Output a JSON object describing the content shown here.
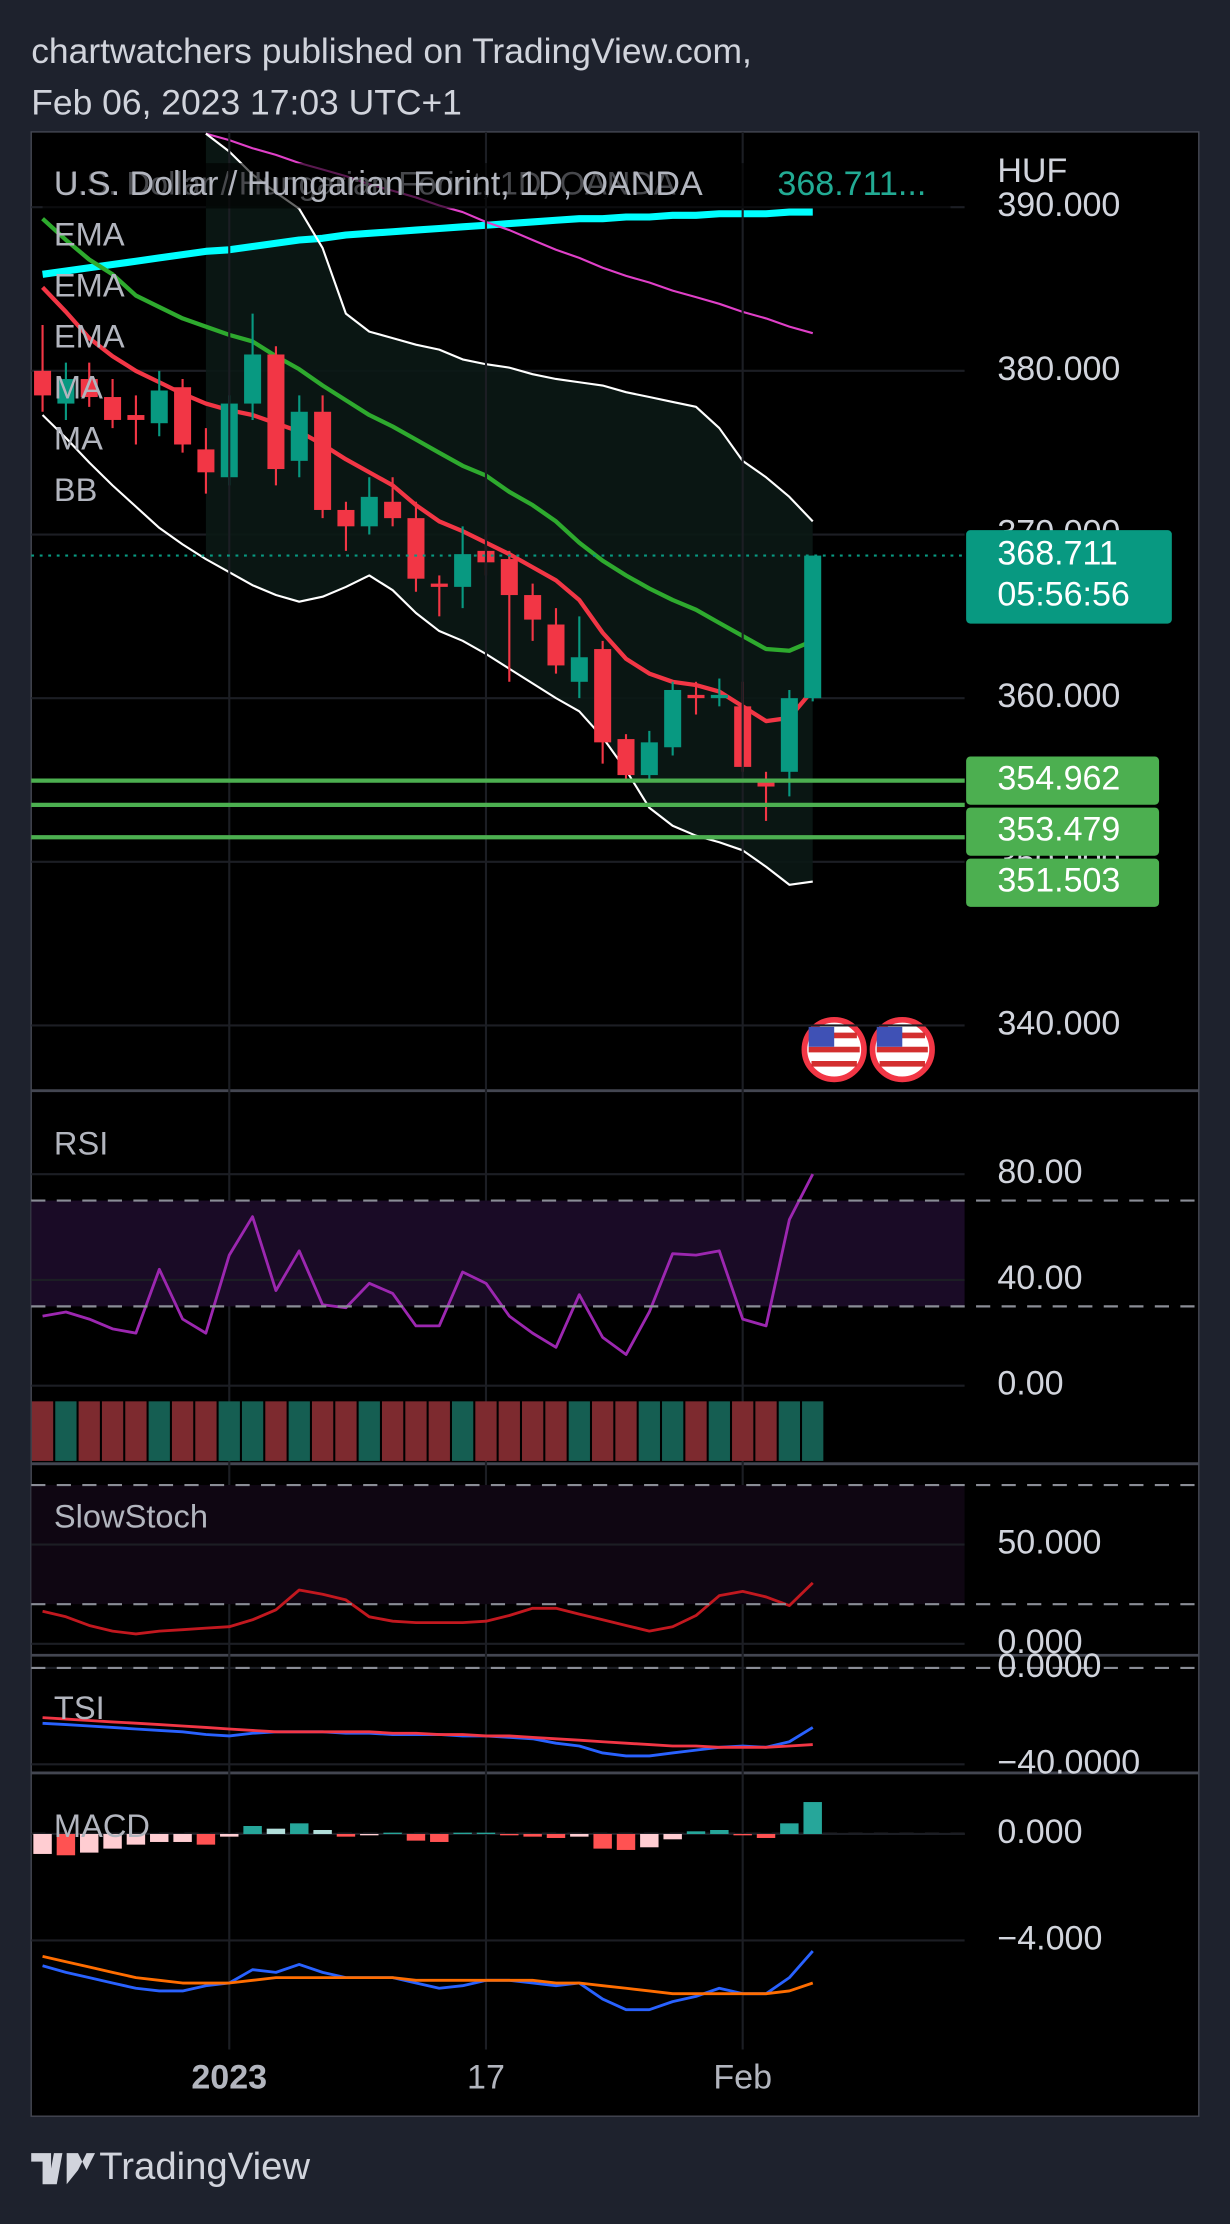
{
  "header": {
    "publisher": "chartwatchers published on TradingView.com,",
    "timestamp": "Feb 06, 2023 17:03 UTC+1"
  },
  "footer": {
    "brand": "TradingView"
  },
  "chart_data": [
    {
      "type": "candlestick",
      "title": "U.S. Dollar / Hungarian Forint, 1D, OANDA",
      "title_value": "368.711...",
      "currency": "HUF",
      "legend": [
        "EMA",
        "EMA",
        "EMA",
        "MA",
        "MA",
        "BB"
      ],
      "categories": [
        null,
        null,
        null,
        null,
        null,
        null,
        null,
        null,
        "2023",
        null,
        null,
        null,
        null,
        null,
        null,
        null,
        null,
        null,
        null,
        "17",
        null,
        null,
        null,
        null,
        null,
        null,
        null,
        null,
        null,
        null,
        "Feb",
        null,
        null,
        null
      ],
      "open": [
        380.0,
        378.0,
        379.5,
        378.4,
        377.3,
        376.8,
        379.0,
        375.2,
        373.5,
        378.0,
        381.0,
        374.5,
        377.5,
        371.5,
        370.5,
        372.0,
        371.0,
        367.0,
        366.8,
        369.0,
        368.5,
        366.3,
        364.5,
        361.0,
        363.0,
        357.5,
        355.3,
        357.0,
        360.2,
        360.0,
        359.5,
        355.0,
        355.5,
        360.0
      ],
      "high": [
        382.8,
        380.5,
        380.5,
        379.5,
        378.5,
        380.0,
        379.5,
        376.5,
        378.5,
        383.5,
        381.5,
        378.5,
        378.5,
        372.0,
        373.5,
        373.5,
        372.0,
        367.5,
        370.5,
        370.0,
        369.0,
        367.0,
        365.5,
        365.0,
        363.5,
        357.8,
        358.0,
        361.0,
        361.0,
        361.2,
        361.0,
        355.5,
        360.5,
        368.711
      ],
      "low": [
        377.5,
        377.0,
        377.8,
        376.5,
        375.5,
        376.0,
        375.0,
        372.5,
        373.0,
        377.0,
        373.0,
        373.5,
        371.0,
        369.0,
        370.0,
        370.5,
        366.5,
        365.0,
        365.5,
        367.5,
        361.0,
        363.5,
        361.5,
        360.0,
        356.0,
        355.0,
        355.0,
        356.5,
        359.0,
        359.5,
        355.5,
        352.5,
        354.0,
        359.8
      ],
      "close": [
        378.5,
        379.5,
        378.4,
        377.0,
        377.0,
        378.8,
        375.5,
        373.8,
        378.0,
        381.0,
        374.0,
        377.5,
        371.5,
        370.5,
        372.3,
        371.0,
        367.3,
        366.8,
        368.8,
        368.3,
        366.3,
        364.8,
        362.0,
        362.5,
        357.3,
        355.3,
        357.3,
        360.5,
        360.0,
        360.2,
        355.8,
        354.6,
        360.0,
        368.711
      ],
      "up_color": "#089981",
      "down_color": "#f23645",
      "direction_colors": [
        "#155e52",
        "#7d2a2f"
      ],
      "overlays": [
        {
          "color": "#00ffff",
          "values": [
            385.9,
            386.1,
            386.3,
            386.5,
            386.7,
            386.9,
            387.1,
            387.3,
            387.4,
            387.6,
            387.8,
            388.0,
            388.1,
            388.3,
            388.4,
            388.5,
            388.6,
            388.7,
            388.8,
            388.9,
            389.0,
            389.1,
            389.2,
            389.3,
            389.3,
            389.4,
            389.4,
            389.5,
            389.5,
            389.6,
            389.6,
            389.6,
            389.7,
            389.7
          ]
        },
        {
          "color": "#2eaa2e",
          "values": [
            389.3,
            388.0,
            386.8,
            385.9,
            384.6,
            383.9,
            383.2,
            382.7,
            382.2,
            381.8,
            380.9,
            380.1,
            379.1,
            378.2,
            377.3,
            376.6,
            375.8,
            375.0,
            374.2,
            373.6,
            372.6,
            371.8,
            370.8,
            369.5,
            368.4,
            367.5,
            366.7,
            366.0,
            365.4,
            364.6,
            363.8,
            363.0,
            362.9,
            363.5
          ]
        },
        {
          "color": "#f23645",
          "values": [
            385.1,
            383.6,
            382.0,
            380.9,
            380.0,
            379.3,
            378.6,
            378.0,
            377.6,
            377.3,
            376.8,
            376.3,
            375.5,
            374.6,
            373.8,
            373.0,
            371.8,
            370.8,
            370.2,
            369.5,
            368.8,
            368.0,
            367.2,
            366.0,
            364.0,
            362.4,
            361.5,
            361.0,
            360.8,
            360.4,
            359.5,
            358.6,
            358.8,
            360.5
          ]
        },
        {
          "color": "#e040c8",
          "values": [
            null,
            null,
            null,
            null,
            null,
            null,
            null,
            394.5,
            394.1,
            393.6,
            393.2,
            392.7,
            392.3,
            391.9,
            391.4,
            391.0,
            390.6,
            390.1,
            389.7,
            389.1,
            388.6,
            388.0,
            387.4,
            386.9,
            386.3,
            385.8,
            385.4,
            384.9,
            384.5,
            384.1,
            383.6,
            383.2,
            382.7,
            382.3
          ]
        },
        {
          "color": "#ffffff",
          "values": [
            null,
            null,
            null,
            null,
            null,
            null,
            null,
            394.5,
            393.4,
            392.0,
            390.9,
            389.9,
            387.5,
            383.5,
            382.4,
            382.0,
            381.6,
            381.3,
            380.7,
            380.4,
            380.2,
            379.8,
            379.5,
            379.3,
            379.1,
            378.7,
            378.4,
            378.1,
            377.8,
            376.5,
            374.5,
            373.5,
            372.3,
            370.8
          ]
        },
        {
          "color": "#ffffff",
          "values": [
            377.3,
            375.9,
            374.4,
            373.0,
            371.7,
            370.4,
            369.4,
            368.5,
            367.7,
            366.9,
            366.3,
            365.9,
            366.2,
            366.8,
            367.5,
            366.6,
            365.2,
            364.1,
            363.5,
            362.7,
            361.8,
            360.9,
            360.0,
            359.2,
            357.6,
            355.6,
            353.3,
            352.2,
            351.6,
            351.2,
            350.7,
            349.7,
            348.6,
            348.8
          ]
        }
      ],
      "last_price": 368.711,
      "last_price_color": "#089981",
      "countdown": "05:56:56",
      "levels": [
        354.962,
        353.479,
        351.503
      ],
      "level_color": "#4caf50",
      "ylim": [
        336.1,
        394.6
      ],
      "yticks": [
        {
          "value": 390,
          "label": "390.000"
        },
        {
          "value": 380,
          "label": "380.000"
        },
        {
          "value": 370,
          "label": "370.000"
        },
        {
          "value": 360,
          "label": "360.000"
        },
        {
          "value": 350,
          "label": "350.000"
        },
        {
          "value": 340,
          "label": "340.000"
        }
      ],
      "grid": true
    },
    {
      "type": "line",
      "title": "RSI",
      "series": [
        {
          "color": "#9c27b0",
          "values": [
            26.3,
            27.9,
            25.2,
            21.5,
            19.9,
            44.0,
            25.2,
            19.9,
            49.4,
            63.9,
            36.0,
            51.0,
            30.6,
            29.5,
            38.7,
            34.9,
            22.6,
            22.6,
            43.0,
            38.7,
            26.3,
            19.9,
            14.5,
            34.4,
            18.3,
            11.8,
            27.9,
            49.9,
            49.4,
            51.0,
            25.2,
            22.6,
            62.8,
            80.0
          ]
        }
      ],
      "ylim": [
        -4.3,
        111
      ],
      "yticks": [
        {
          "value": 80,
          "label": "80.00"
        },
        {
          "value": 40,
          "label": "40.00"
        },
        {
          "value": 0,
          "label": "0.00"
        }
      ],
      "bands": [
        70,
        30
      ],
      "band_fill": "#1a0b26"
    },
    {
      "type": "line",
      "title": "SlowStoch",
      "series": [
        {
          "color": "#c2181f",
          "values": [
            16.4,
            13.6,
            9.3,
            6.4,
            5.0,
            6.4,
            7.1,
            7.9,
            8.6,
            12.1,
            17.1,
            27.1,
            25.0,
            22.1,
            13.6,
            11.4,
            10.7,
            10.7,
            10.7,
            11.4,
            14.3,
            17.9,
            17.9,
            15.0,
            12.1,
            9.3,
            6.4,
            8.6,
            14.3,
            24.3,
            26.4,
            23.6,
            19.3,
            30.7
          ]
        }
      ],
      "ylim": [
        -4.3,
        90
      ],
      "yticks": [
        {
          "value": 50,
          "label": "50.000"
        },
        {
          "value": 0,
          "label": "0.000"
        }
      ],
      "bands": [
        80,
        20
      ],
      "band_fill": "#0f0612"
    },
    {
      "type": "line",
      "title": "TSI",
      "series": [
        {
          "color": "#2962ff",
          "values": [
            -23.0,
            -23.5,
            -24.1,
            -24.7,
            -25.3,
            -25.9,
            -26.5,
            -27.6,
            -28.2,
            -27.1,
            -26.5,
            -26.5,
            -26.5,
            -27.1,
            -27.1,
            -27.6,
            -27.6,
            -27.6,
            -28.2,
            -28.2,
            -28.8,
            -29.4,
            -31.2,
            -32.4,
            -35.3,
            -36.5,
            -36.5,
            -35.3,
            -34.1,
            -32.9,
            -32.4,
            -32.9,
            -30.6,
            -24.7
          ]
        },
        {
          "color": "#f23645",
          "values": [
            -20.6,
            -21.2,
            -21.8,
            -22.4,
            -22.9,
            -23.5,
            -24.1,
            -24.7,
            -25.3,
            -25.9,
            -26.5,
            -26.5,
            -26.5,
            -26.5,
            -26.5,
            -27.1,
            -27.1,
            -27.6,
            -27.6,
            -28.2,
            -28.2,
            -28.8,
            -29.4,
            -30.0,
            -30.6,
            -31.2,
            -31.8,
            -32.4,
            -32.4,
            -32.9,
            -32.9,
            -32.9,
            -32.4,
            -31.8
          ]
        }
      ],
      "ylim": [
        -42.4,
        4.7
      ],
      "yticks": [
        {
          "value": 0,
          "label": "0.0000"
        },
        {
          "value": -40,
          "label": "−40.0000"
        }
      ],
      "bands": [
        0
      ]
    },
    {
      "type": "macd",
      "title": "MACD",
      "histogram": [
        -0.75,
        -0.8,
        -0.7,
        -0.55,
        -0.4,
        -0.3,
        -0.3,
        -0.4,
        -0.1,
        0.3,
        0.2,
        0.4,
        0.15,
        -0.1,
        -0.05,
        0.05,
        -0.25,
        -0.3,
        0.05,
        0.05,
        -0.05,
        -0.1,
        -0.15,
        -0.1,
        -0.55,
        -0.6,
        -0.5,
        -0.2,
        0.1,
        0.15,
        -0.05,
        -0.15,
        0.4,
        1.2
      ],
      "hist_colors": [
        "#26a69a",
        "#b2dfdb",
        "#ffcdd2",
        "#ff5252"
      ],
      "series": [
        {
          "color": "#2962ff",
          "values": [
            -4.95,
            -5.2,
            -5.4,
            -5.6,
            -5.8,
            -5.9,
            -5.9,
            -5.7,
            -5.6,
            -5.1,
            -5.2,
            -4.9,
            -5.2,
            -5.4,
            -5.4,
            -5.4,
            -5.6,
            -5.8,
            -5.7,
            -5.5,
            -5.5,
            -5.6,
            -5.7,
            -5.6,
            -6.2,
            -6.6,
            -6.6,
            -6.3,
            -6.1,
            -5.8,
            -6.0,
            -6.0,
            -5.4,
            -4.4
          ]
        },
        {
          "color": "#ff6d00",
          "values": [
            -4.6,
            -4.8,
            -5.0,
            -5.2,
            -5.4,
            -5.5,
            -5.6,
            -5.6,
            -5.6,
            -5.5,
            -5.4,
            -5.4,
            -5.4,
            -5.4,
            -5.4,
            -5.4,
            -5.5,
            -5.5,
            -5.5,
            -5.5,
            -5.5,
            -5.5,
            -5.6,
            -5.6,
            -5.7,
            -5.8,
            -5.9,
            -6.0,
            -6.0,
            -6.0,
            -6.0,
            -6.0,
            -5.9,
            -5.6
          ]
        }
      ],
      "ylim": [
        -8.1,
        2.24
      ],
      "yticks": [
        {
          "value": 0,
          "label": "0.000"
        },
        {
          "value": -4,
          "label": "−4.000"
        }
      ],
      "bands": [
        0
      ]
    }
  ]
}
